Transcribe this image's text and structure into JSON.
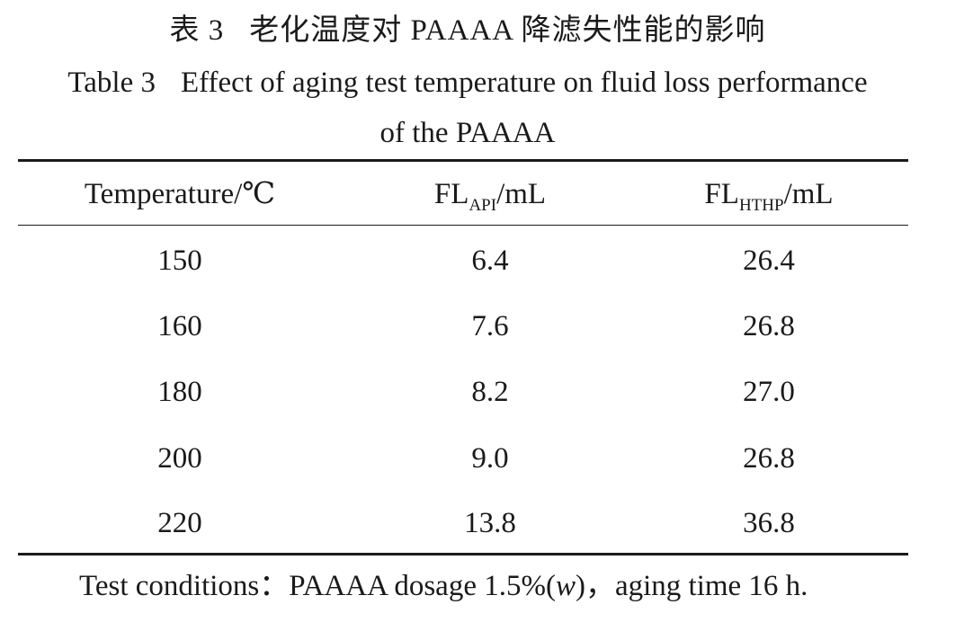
{
  "caption": {
    "cn_label": "表 3",
    "cn_text": "老化温度对 PAAAA 降滤失性能的影响",
    "en_label": "Table 3",
    "en_text_line1": "Effect of aging test temperature on fluid loss performance",
    "en_text_line2": "of the PAAAA"
  },
  "table": {
    "headers": {
      "temperature": "Temperature/℃",
      "fl_api_main": "FL",
      "fl_api_sub": "API",
      "fl_api_unit": "/mL",
      "fl_hthp_main": "FL",
      "fl_hthp_sub": "HTHP",
      "fl_hthp_unit": "/mL"
    },
    "rows": [
      {
        "temperature": "150",
        "fl_api": "6.4",
        "fl_hthp": "26.4"
      },
      {
        "temperature": "160",
        "fl_api": "7.6",
        "fl_hthp": "26.8"
      },
      {
        "temperature": "180",
        "fl_api": "8.2",
        "fl_hthp": "27.0"
      },
      {
        "temperature": "200",
        "fl_api": "9.0",
        "fl_hthp": "26.8"
      },
      {
        "temperature": "220",
        "fl_api": "13.8",
        "fl_hthp": "36.8"
      }
    ]
  },
  "note": {
    "prefix": "Test conditions：PAAAA dosage 1.5%(",
    "var": "w",
    "suffix": ")，aging time 16 h."
  }
}
